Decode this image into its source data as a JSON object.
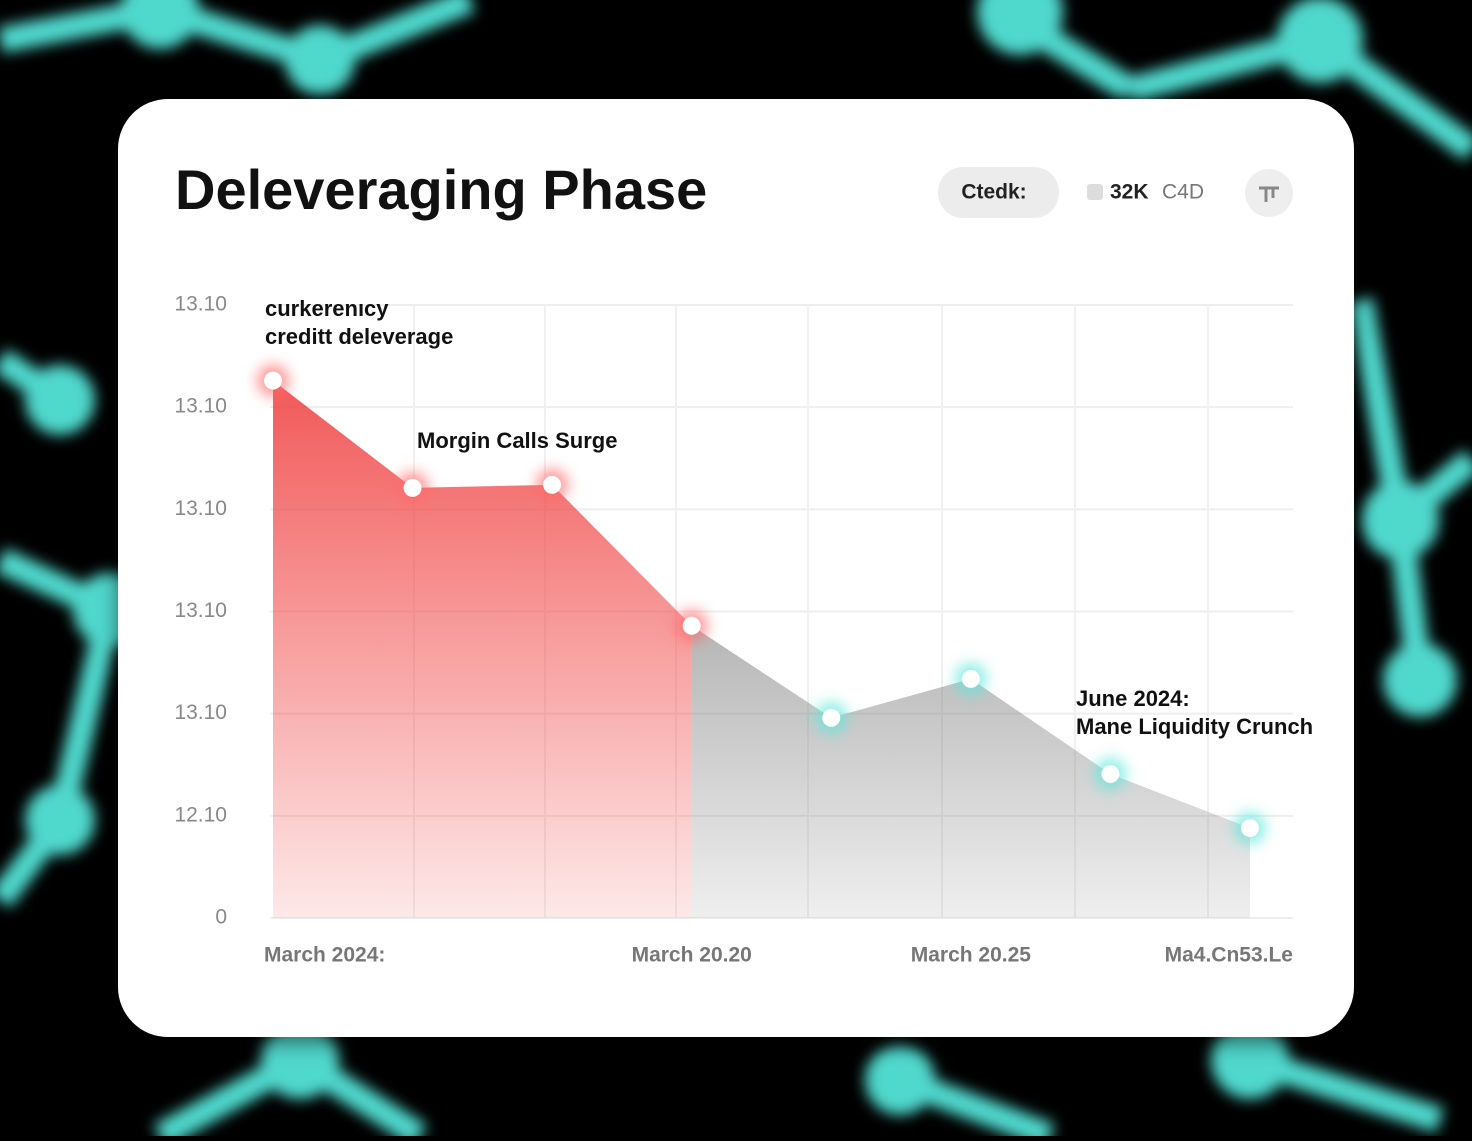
{
  "header": {
    "title": "Deleveraging Phase",
    "button": "Ctedk:",
    "legend": [
      "32K",
      "C4D"
    ]
  },
  "chart_data": {
    "type": "area",
    "categories": [
      "March 2024:",
      null,
      null,
      "March 20.20",
      null,
      "March 20.25",
      null,
      "Ma4.Cn53.Le"
    ],
    "series": [
      {
        "color": "#f04444",
        "glow": "#ff6b6b",
        "values": [
          5.26,
          4.21,
          4.24,
          2.86,
          null,
          null,
          null,
          null
        ]
      },
      {
        "color": "#777777",
        "glow": "#5ce8dc",
        "values": [
          null,
          null,
          null,
          2.86,
          1.96,
          2.34,
          1.41,
          0.88
        ]
      }
    ],
    "ylim": [
      0,
      6
    ],
    "yticks": [
      0,
      {
        "value": 1,
        "label": "12.10"
      },
      {
        "value": 2,
        "label": "13.10"
      },
      {
        "value": 3,
        "label": "13.10"
      },
      {
        "value": 4,
        "label": "13.10"
      },
      {
        "value": 5,
        "label": "13.10"
      },
      {
        "value": 6,
        "label": "13.10"
      }
    ],
    "grid": true,
    "annotations": [
      {
        "lines": [
          "curkerenıcy",
          "creditt deleverage"
        ]
      },
      {
        "lines": [
          "Morgin Calls Surge"
        ]
      },
      {
        "lines": [
          "June 2024:",
          "Mane Liquidity Crunch"
        ]
      }
    ]
  }
}
